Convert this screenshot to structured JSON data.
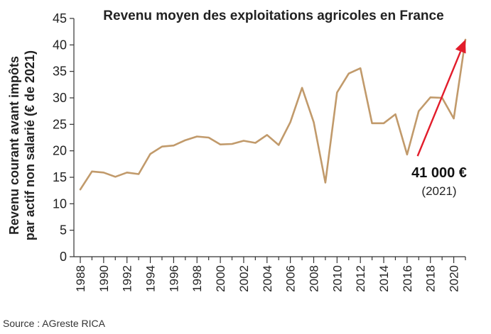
{
  "source_note": "Source : AGreste RICA",
  "chart_data": {
    "type": "line",
    "title": "Revenu moyen des exploitations agricoles en France",
    "ylabel_line1": "Revenu courant avant impôts",
    "ylabel_line2": "par actif non salarié (€ de 2021)",
    "xlabel": "",
    "ylim": [
      0,
      45
    ],
    "yticks": [
      0,
      5,
      10,
      15,
      20,
      25,
      30,
      35,
      40,
      45
    ],
    "xlim": [
      1988,
      2021
    ],
    "xtick_labels": [
      "1988",
      "1990",
      "1992",
      "1994",
      "1996",
      "1998",
      "2000",
      "2002",
      "2004",
      "2006",
      "2008",
      "2010",
      "2012",
      "2014",
      "2016",
      "2018",
      "2020"
    ],
    "grid": false,
    "line_color": "#c19a6b",
    "x": [
      1988,
      1989,
      1990,
      1991,
      1992,
      1993,
      1994,
      1995,
      1996,
      1997,
      1998,
      1999,
      2000,
      2001,
      2002,
      2003,
      2004,
      2005,
      2006,
      2007,
      2008,
      2009,
      2010,
      2011,
      2012,
      2013,
      2014,
      2015,
      2016,
      2017,
      2018,
      2019,
      2020,
      2021
    ],
    "values": [
      12.7,
      16.1,
      15.9,
      15.1,
      15.9,
      15.6,
      19.4,
      20.8,
      21.0,
      22.0,
      22.7,
      22.5,
      21.2,
      21.3,
      21.9,
      21.5,
      23.0,
      21.1,
      25.4,
      31.9,
      25.4,
      14.0,
      31.0,
      34.6,
      35.6,
      25.2,
      25.2,
      26.9,
      19.3,
      27.5,
      30.1,
      30.0,
      26.1,
      41.0
    ],
    "annotation": {
      "value_text": "41 000 €",
      "year_text": "(2021)",
      "arrow_color": "#e21d2b",
      "arrow_from": [
        2016.9,
        19.0
      ],
      "arrow_to": [
        2021.0,
        41.0
      ]
    }
  }
}
